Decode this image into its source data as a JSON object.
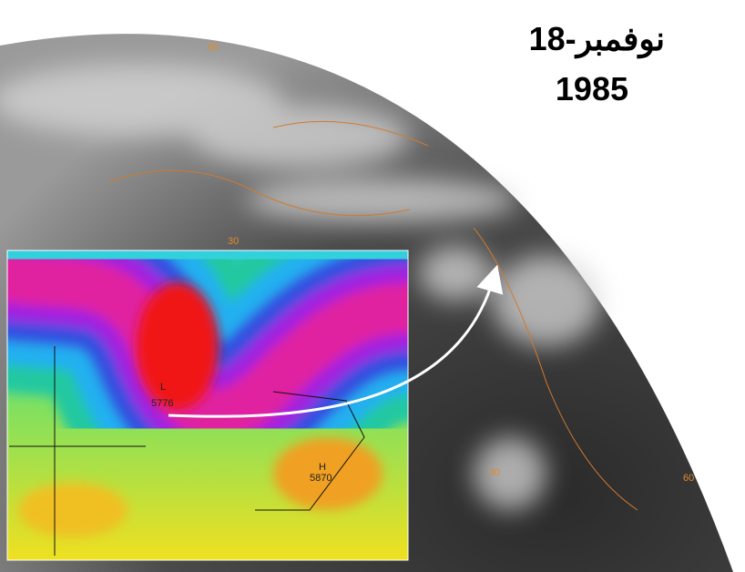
{
  "title": {
    "date": "18-نوفمبر",
    "year": "1985"
  },
  "grid_labels": [
    "60",
    "30",
    "30",
    "60"
  ],
  "inset": {
    "low_label": "L",
    "low_value": "5776",
    "high_label": "H",
    "high_value": "5870"
  }
}
